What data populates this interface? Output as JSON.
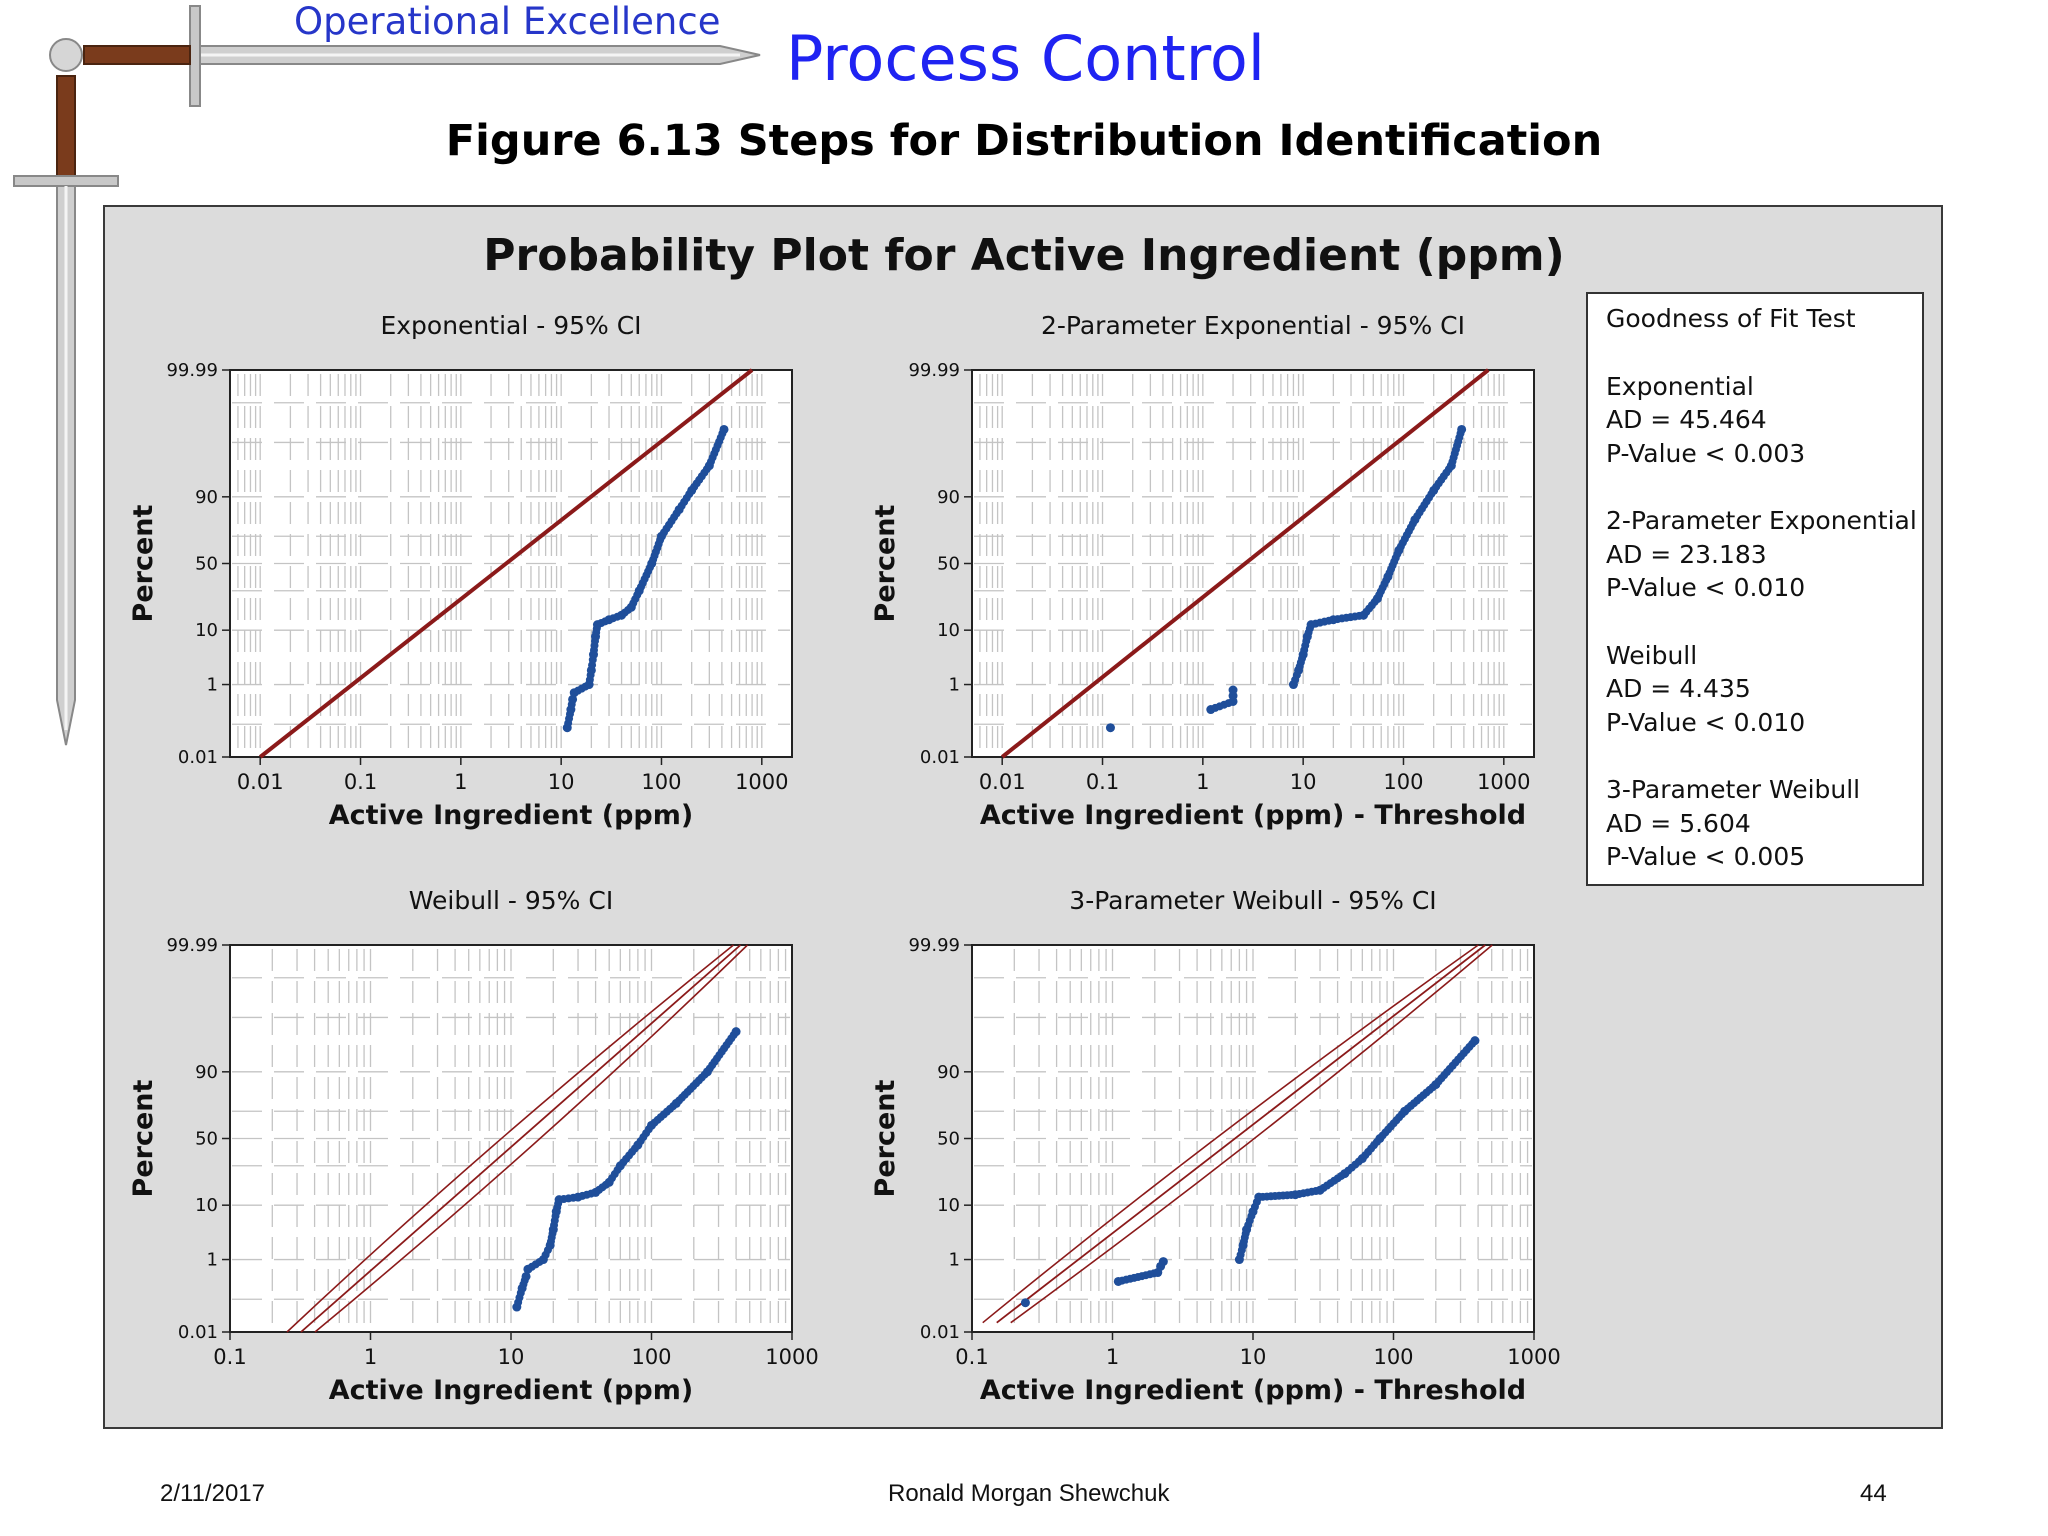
{
  "header": {
    "brand": "Operational Excellence",
    "slide_title": "Process Control",
    "figure_title": "Figure 6.13  Steps for Distribution Identification"
  },
  "footer": {
    "date": "2/11/2017",
    "author": "Ronald Morgan Shewchuk",
    "page": "44"
  },
  "colors": {
    "points": "#1f4e9a",
    "fit_line": "#8b1a1a",
    "panel_bg": "#dcdcdc",
    "plot_bg": "#ffffff"
  },
  "chart_data": {
    "title": "Probability Plot for Active Ingredient (ppm)",
    "goodness_of_fit": {
      "heading": "Goodness of Fit Test",
      "tests": [
        {
          "name": "Exponential",
          "ad": "AD = 45.464",
          "p": "P-Value < 0.003"
        },
        {
          "name": "2-Parameter Exponential",
          "ad": "AD = 23.183",
          "p": "P-Value < 0.010"
        },
        {
          "name": "Weibull",
          "ad": "AD = 4.435",
          "p": "P-Value < 0.010"
        },
        {
          "name": "3-Parameter Weibull",
          "ad": "AD = 5.604",
          "p": "P-Value < 0.005"
        }
      ]
    },
    "plots": [
      {
        "type": "scatter",
        "title": "Exponential - 95% CI",
        "xlabel": "Active Ingredient (ppm)",
        "ylabel": "Percent",
        "x_scale": "log",
        "y_scale": "probability",
        "xlim": [
          0.005,
          2000
        ],
        "ylim": [
          0.01,
          99.99
        ],
        "x_ticks": [
          "0.01",
          "0.1",
          "1",
          "10",
          "100",
          "1000"
        ],
        "y_ticks": [
          "99.99",
          "90",
          "50",
          "10",
          "1",
          "0.01"
        ],
        "ci_band": false,
        "fit_line": [
          [
            0.01,
            0.01
          ],
          [
            800,
            99.99
          ]
        ],
        "points": [
          [
            11.5,
            0.08
          ],
          [
            12.5,
            0.25
          ],
          [
            13,
            0.45
          ],
          [
            13.5,
            0.65
          ],
          [
            19,
            1
          ],
          [
            20,
            2
          ],
          [
            21,
            4
          ],
          [
            22,
            8
          ],
          [
            23,
            12
          ],
          [
            30,
            14
          ],
          [
            40,
            16
          ],
          [
            50,
            20
          ],
          [
            60,
            30
          ],
          [
            80,
            50
          ],
          [
            100,
            70
          ],
          [
            150,
            85
          ],
          [
            200,
            92
          ],
          [
            300,
            97
          ],
          [
            420,
            99.5
          ]
        ]
      },
      {
        "type": "scatter",
        "title": "2-Parameter Exponential - 95% CI",
        "xlabel": "Active Ingredient (ppm) - Threshold",
        "ylabel": "Percent",
        "x_scale": "log",
        "y_scale": "probability",
        "xlim": [
          0.005,
          2000
        ],
        "ylim": [
          0.01,
          99.99
        ],
        "x_ticks": [
          "0.01",
          "0.1",
          "1",
          "10",
          "100",
          "1000"
        ],
        "y_ticks": [
          "99.99",
          "90",
          "50",
          "10",
          "1",
          "0.01"
        ],
        "ci_band": false,
        "fit_line": [
          [
            0.01,
            0.01
          ],
          [
            700,
            99.99
          ]
        ],
        "points": [
          [
            0.12,
            0.08
          ],
          [
            1.2,
            0.25
          ],
          [
            2,
            0.4
          ],
          [
            2,
            0.55
          ],
          [
            2,
            0.75
          ],
          [
            8,
            1
          ],
          [
            9,
            2
          ],
          [
            10,
            4
          ],
          [
            11,
            8
          ],
          [
            12,
            12
          ],
          [
            20,
            14
          ],
          [
            40,
            16
          ],
          [
            55,
            25
          ],
          [
            70,
            40
          ],
          [
            90,
            60
          ],
          [
            130,
            80
          ],
          [
            200,
            92
          ],
          [
            300,
            97
          ],
          [
            380,
            99.5
          ]
        ]
      },
      {
        "type": "scatter",
        "title": "Weibull - 95% CI",
        "xlabel": "Active Ingredient (ppm)",
        "ylabel": "Percent",
        "x_scale": "log",
        "y_scale": "probability",
        "xlim": [
          0.1,
          1000
        ],
        "ylim": [
          0.01,
          99.99
        ],
        "x_ticks": [
          "0.1",
          "1",
          "10",
          "100",
          "1000"
        ],
        "y_ticks": [
          "99.99",
          "90",
          "50",
          "10",
          "1",
          "0.01"
        ],
        "ci_band": true,
        "fit_line": [
          [
            0.32,
            0.01
          ],
          [
            430,
            99.99
          ]
        ],
        "points": [
          [
            11,
            0.06
          ],
          [
            12,
            0.2
          ],
          [
            12.8,
            0.4
          ],
          [
            13.2,
            0.6
          ],
          [
            17,
            1
          ],
          [
            19,
            2
          ],
          [
            20,
            4
          ],
          [
            21,
            8
          ],
          [
            22,
            12
          ],
          [
            30,
            13
          ],
          [
            40,
            15
          ],
          [
            50,
            20
          ],
          [
            60,
            30
          ],
          [
            80,
            45
          ],
          [
            100,
            60
          ],
          [
            150,
            75
          ],
          [
            250,
            90
          ],
          [
            400,
            98
          ]
        ]
      },
      {
        "type": "scatter",
        "title": "3-Parameter Weibull - 95% CI",
        "xlabel": "Active Ingredient (ppm) - Threshold",
        "ylabel": "Percent",
        "x_scale": "log",
        "y_scale": "probability",
        "xlim": [
          0.1,
          1000
        ],
        "ylim": [
          0.01,
          99.99
        ],
        "x_ticks": [
          "0.1",
          "1",
          "10",
          "100",
          "1000"
        ],
        "y_ticks": [
          "99.99",
          "90",
          "50",
          "10",
          "1",
          "0.01"
        ],
        "ci_band": true,
        "fit_line": [
          [
            0.15,
            0.02
          ],
          [
            450,
            99.99
          ]
        ],
        "points": [
          [
            0.24,
            0.08
          ],
          [
            1.1,
            0.3
          ],
          [
            2.1,
            0.5
          ],
          [
            2.2,
            0.7
          ],
          [
            2.3,
            0.9
          ],
          [
            8,
            1
          ],
          [
            8.5,
            2
          ],
          [
            9,
            4
          ],
          [
            10,
            8
          ],
          [
            11,
            13
          ],
          [
            20,
            14
          ],
          [
            30,
            16
          ],
          [
            45,
            25
          ],
          [
            60,
            35
          ],
          [
            80,
            50
          ],
          [
            120,
            70
          ],
          [
            200,
            85
          ],
          [
            380,
            97
          ]
        ]
      }
    ]
  }
}
